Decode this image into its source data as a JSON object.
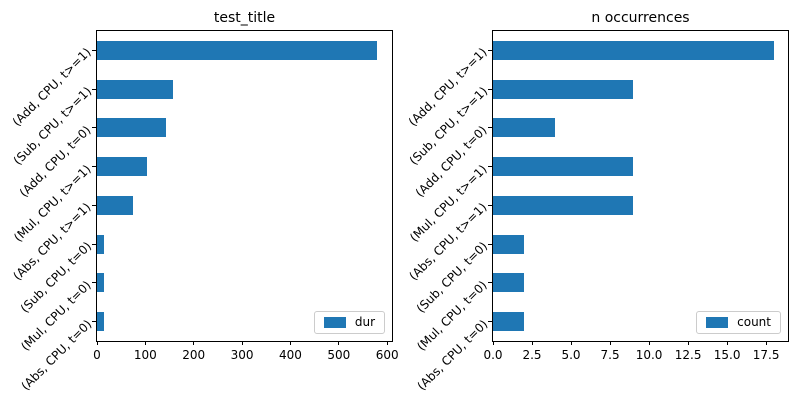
{
  "figure": {
    "background": "#ffffff",
    "text_color": "#000000",
    "spine_color": "#000000"
  },
  "chart_data": [
    {
      "type": "bar",
      "orientation": "horizontal",
      "title": "test_title",
      "categories": [
        "(Add, CPU, t>=1)",
        "(Sub, CPU, t>=1)",
        "(Add, CPU, t=0)",
        "(Mul, CPU, t>=1)",
        "(Abs, CPU, t>=1)",
        "(Sub, CPU, t=0)",
        "(Mul, CPU, t=0)",
        "(Abs, CPU, t=0)"
      ],
      "series": [
        {
          "name": "dur",
          "values": [
            580,
            157,
            143,
            104,
            75,
            15,
            15,
            15
          ]
        }
      ],
      "legend_entries": [
        "dur"
      ],
      "legend_position": "lower right",
      "xlim": [
        0,
        610
      ],
      "xticks": [
        0,
        100,
        200,
        300,
        400,
        500,
        600
      ],
      "xtick_labels": [
        "0",
        "100",
        "200",
        "300",
        "400",
        "500",
        "600"
      ],
      "ytick_rotation_deg": 45,
      "bar_color": "#1f77b4",
      "grid": false,
      "xlabel": "",
      "ylabel": ""
    },
    {
      "type": "bar",
      "orientation": "horizontal",
      "title": "n occurrences",
      "categories": [
        "(Add, CPU, t>=1)",
        "(Sub, CPU, t>=1)",
        "(Add, CPU, t=0)",
        "(Mul, CPU, t>=1)",
        "(Abs, CPU, t>=1)",
        "(Sub, CPU, t=0)",
        "(Mul, CPU, t=0)",
        "(Abs, CPU, t=0)"
      ],
      "series": [
        {
          "name": "count",
          "values": [
            18,
            9,
            4,
            9,
            9,
            2,
            2,
            2
          ]
        }
      ],
      "legend_entries": [
        "count"
      ],
      "legend_position": "lower right",
      "xlim": [
        0,
        18.9
      ],
      "xticks": [
        0,
        2.5,
        5,
        7.5,
        10,
        12.5,
        15,
        17.5
      ],
      "xtick_labels": [
        "0.0",
        "2.5",
        "5.0",
        "7.5",
        "10.0",
        "12.5",
        "15.0",
        "17.5"
      ],
      "ytick_rotation_deg": 45,
      "bar_color": "#1f77b4",
      "grid": false,
      "xlabel": "",
      "ylabel": ""
    }
  ]
}
